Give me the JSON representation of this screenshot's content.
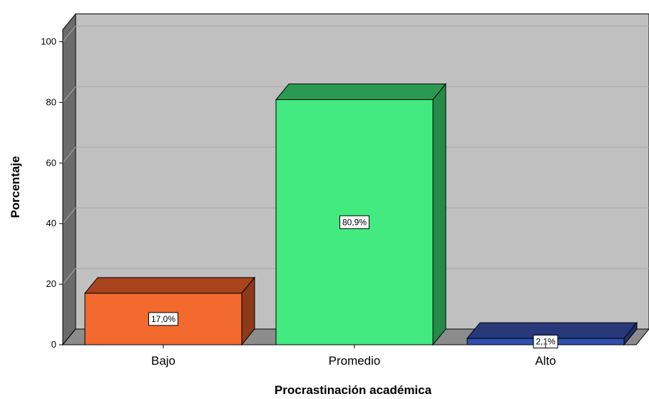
{
  "chart_data": {
    "type": "bar",
    "title": "",
    "xlabel": "Procrastinación académica",
    "ylabel": "Porcentaje",
    "categories": [
      "Bajo",
      "Promedio",
      "Alto"
    ],
    "values": [
      17.0,
      80.9,
      2.1
    ],
    "data_labels": [
      "17,0%",
      "80,9%",
      "2,1%"
    ],
    "yticks": [
      0,
      20,
      40,
      60,
      80,
      100
    ],
    "ytick_labels": [
      "0",
      "20",
      "40",
      "60",
      "80",
      "100"
    ],
    "ylim": [
      0,
      104
    ],
    "grid": true,
    "style": "3d",
    "colors": {
      "background": "#c0c0c0",
      "wall_side": "#6b6b6b",
      "floor": "#8c8c8c",
      "bars_front": [
        "#f26a2e",
        "#42ea80",
        "#2f4fb0"
      ],
      "bars_top": [
        "#a8431d",
        "#2a9a52",
        "#27397a"
      ],
      "bars_side": [
        "#8c3a17",
        "#238a48",
        "#1f2f66"
      ]
    }
  }
}
